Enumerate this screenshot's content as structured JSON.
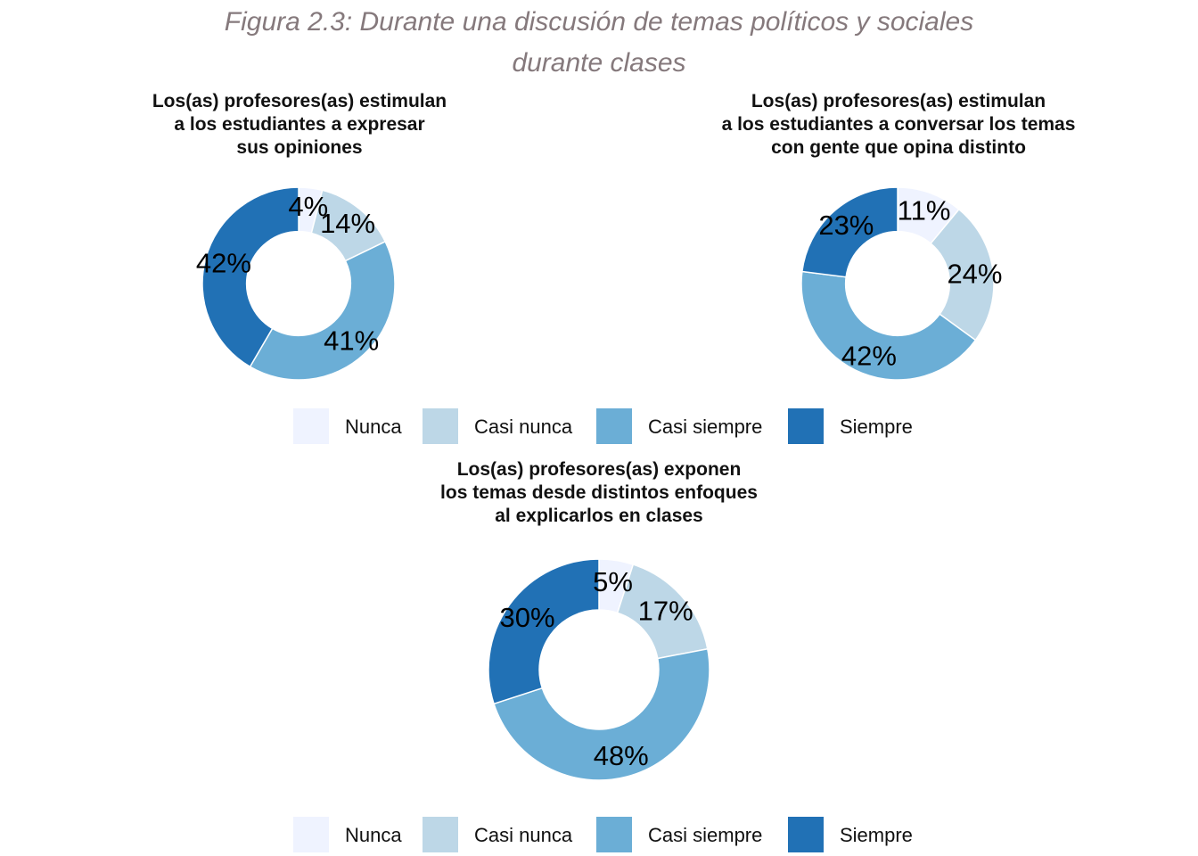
{
  "figure_title_line1": "Figura 2.3: Durante una discusión de temas políticos y sociales",
  "figure_title_line2": "durante clases",
  "colors": {
    "Nunca": "#eff3ff",
    "Casi nunca": "#bdd7e7",
    "Casi siempre": "#6baed6",
    "Siempre": "#2171b5"
  },
  "legends": [
    {
      "items": [
        "Nunca",
        "Casi nunca",
        "Casi siempre",
        "Siempre"
      ]
    },
    {
      "items": [
        "Nunca",
        "Casi nunca",
        "Casi siempre",
        "Siempre"
      ]
    }
  ],
  "chart_data": [
    {
      "type": "pie",
      "subtype": "donut",
      "title_lines": [
        "Los(as) profesores(as) estimulan",
        "a los estudiantes a expresar",
        "sus opiniones"
      ],
      "categories": [
        "Nunca",
        "Casi nunca",
        "Casi siempre",
        "Siempre"
      ],
      "values": [
        4,
        14,
        41,
        42
      ],
      "labels": [
        "4%",
        "14%",
        "41%",
        "42%"
      ]
    },
    {
      "type": "pie",
      "subtype": "donut",
      "title_lines": [
        "Los(as) profesores(as) estimulan",
        "a los estudiantes a conversar los temas",
        "con gente que opina distinto"
      ],
      "categories": [
        "Nunca",
        "Casi nunca",
        "Casi siempre",
        "Siempre"
      ],
      "values": [
        11,
        24,
        42,
        23
      ],
      "labels": [
        "11%",
        "24%",
        "42%",
        "23%"
      ]
    },
    {
      "type": "pie",
      "subtype": "donut",
      "title_lines": [
        "Los(as) profesores(as) exponen",
        "los temas desde distintos enfoques",
        "al explicarlos en clases"
      ],
      "categories": [
        "Nunca",
        "Casi nunca",
        "Casi siempre",
        "Siempre"
      ],
      "values": [
        5,
        17,
        48,
        30
      ],
      "labels": [
        "5%",
        "17%",
        "48%",
        "30%"
      ]
    }
  ]
}
